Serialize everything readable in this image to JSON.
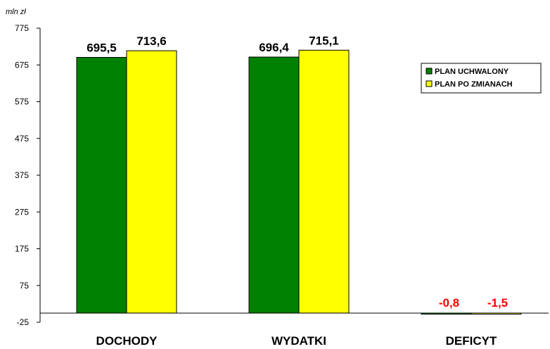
{
  "chart_data": {
    "type": "bar",
    "unit_label": "mln zł",
    "categories": [
      "DOCHODY",
      "WYDATKI",
      "DEFICYT"
    ],
    "series": [
      {
        "name": "PLAN UCHWALONY",
        "color": "#008000",
        "values": [
          695.5,
          696.4,
          -0.8
        ],
        "labels": [
          "695,5",
          "696,4",
          "-0,8"
        ]
      },
      {
        "name": "PLAN PO ZMIANACH",
        "color": "#ffff00",
        "values": [
          713.6,
          715.1,
          -1.5
        ],
        "labels": [
          "713,6",
          "715,1",
          "-1,5"
        ]
      }
    ],
    "negative_label_color": "#ff0000",
    "ylim": [
      -25,
      775
    ],
    "yticks": [
      -25,
      75,
      175,
      275,
      375,
      475,
      575,
      675,
      775
    ],
    "legend_position": "right",
    "grid": false
  }
}
